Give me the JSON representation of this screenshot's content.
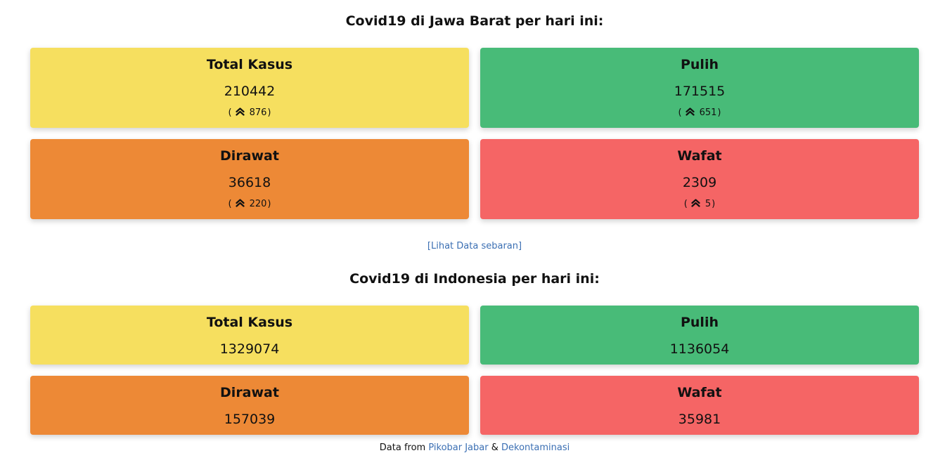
{
  "jabar": {
    "title": "Covid19 di Jawa Barat per hari ini:",
    "cards": [
      {
        "label": "Total Kasus",
        "value": "210442",
        "delta": "876",
        "color": "#f6df5f"
      },
      {
        "label": "Pulih",
        "value": "171515",
        "delta": "651",
        "color": "#48bb78"
      },
      {
        "label": "Dirawat",
        "value": "36618",
        "delta": "220",
        "color": "#ed8936"
      },
      {
        "label": "Wafat",
        "value": "2309",
        "delta": "5",
        "color": "#f56565"
      }
    ],
    "see_more_link": "[Lihat Data sebaran]"
  },
  "indonesia": {
    "title": "Covid19 di Indonesia per hari ini:",
    "cards": [
      {
        "label": "Total Kasus",
        "value": "1329074",
        "color": "#f6df5f"
      },
      {
        "label": "Pulih",
        "value": "1136054",
        "color": "#48bb78"
      },
      {
        "label": "Dirawat",
        "value": "157039",
        "color": "#ed8936"
      },
      {
        "label": "Wafat",
        "value": "35981",
        "color": "#f56565"
      }
    ]
  },
  "footer": {
    "prefix": "Data from",
    "source1": "Pikobar Jabar",
    "separator": "&",
    "source2": "Dekontaminasi"
  },
  "icons": {
    "delta": "double-chevron-up-icon"
  }
}
